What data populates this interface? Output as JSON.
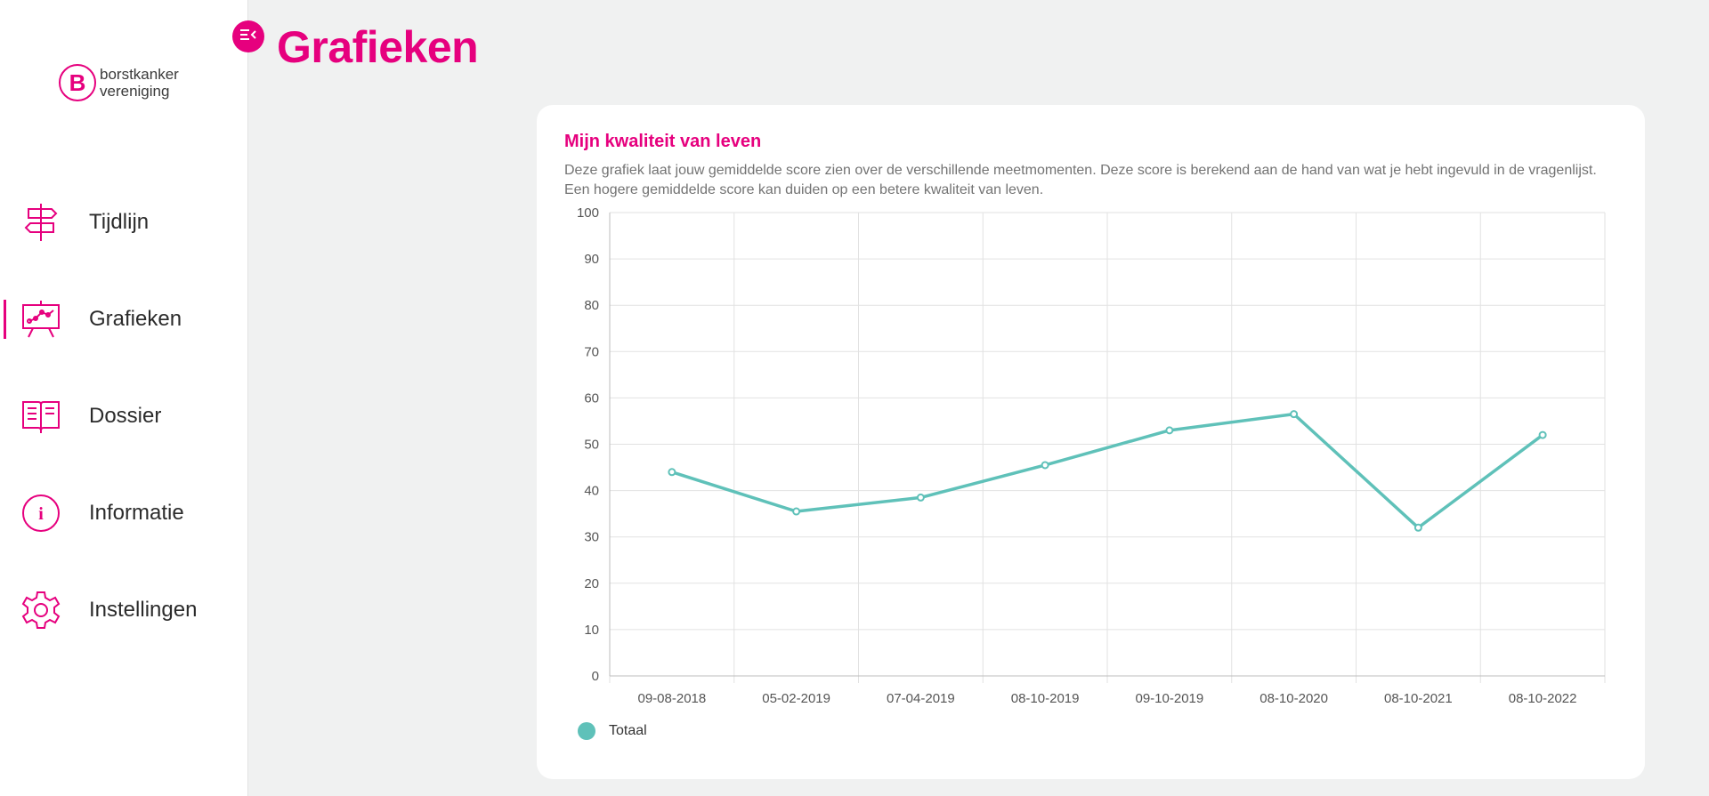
{
  "logo": {
    "line1": "borstkanker",
    "line2": "vereniging",
    "mark": "B"
  },
  "sidebar": {
    "items": [
      {
        "label": "Tijdlijn",
        "icon": "signpost-icon",
        "active": false
      },
      {
        "label": "Grafieken",
        "icon": "chart-board-icon",
        "active": true
      },
      {
        "label": "Dossier",
        "icon": "open-book-icon",
        "active": false
      },
      {
        "label": "Informatie",
        "icon": "info-icon",
        "active": false
      },
      {
        "label": "Instellingen",
        "icon": "gear-icon",
        "active": false
      }
    ]
  },
  "header": {
    "title": "Grafieken",
    "collapse_icon": "collapse-menu-icon"
  },
  "card": {
    "title": "Mijn kwaliteit van leven",
    "description": "Deze grafiek laat jouw gemiddelde score zien over de verschillende meetmomenten. Deze score is berekend aan de hand van wat je hebt ingevuld in de vragenlijst. Een hogere gemiddelde score kan duiden op een betere kwaliteit van leven."
  },
  "colors": {
    "accent": "#e6007e",
    "series": "#5fc1b9",
    "grid": "#e2e2e2",
    "background": "#f0f1f1"
  },
  "chart_data": {
    "type": "line",
    "categories": [
      "09-08-2018",
      "05-02-2019",
      "07-04-2019",
      "08-10-2019",
      "09-10-2019",
      "08-10-2020",
      "08-10-2021",
      "08-10-2022"
    ],
    "series": [
      {
        "name": "Totaal",
        "values": [
          44,
          35.5,
          38.5,
          45.5,
          53,
          56.5,
          32,
          52
        ]
      }
    ],
    "ylim": [
      0,
      100
    ],
    "yticks": [
      0,
      10,
      20,
      30,
      40,
      50,
      60,
      70,
      80,
      90,
      100
    ],
    "grid": true,
    "legend": "bottom-left"
  }
}
